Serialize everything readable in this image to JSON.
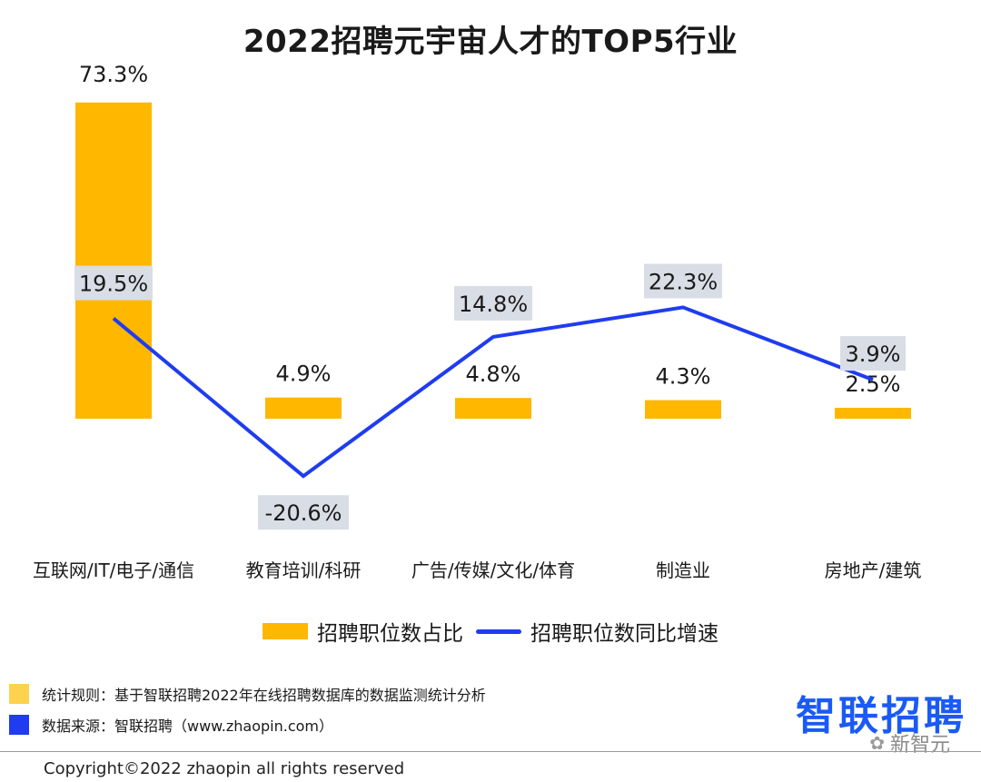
{
  "colors": {
    "bar": "#ffb700",
    "line": "#1f3cf0",
    "label_bg": "#d9dde6",
    "brand": "#1a5af5",
    "rule_swatch": "#ffd24d",
    "source_swatch": "#1f3cf0"
  },
  "chart_data": {
    "type": "bar",
    "title": "2022招聘元宇宙人才的TOP5行业",
    "categories": [
      "互联网/IT/电子/通信",
      "教育培训/科研",
      "广告/传媒/文化/体育",
      "制造业",
      "房地产/建筑"
    ],
    "series": [
      {
        "name": "招聘职位数占比",
        "kind": "bar",
        "values": [
          73.3,
          4.9,
          4.8,
          4.3,
          2.5
        ],
        "labels": [
          "73.3%",
          "4.9%",
          "4.8%",
          "4.3%",
          "2.5%"
        ]
      },
      {
        "name": "招聘职位数同比增速",
        "kind": "line",
        "values": [
          19.5,
          -20.6,
          14.8,
          22.3,
          3.9
        ],
        "labels": [
          "19.5%",
          "-20.6%",
          "14.8%",
          "22.3%",
          "3.9%"
        ]
      }
    ],
    "xlabel": "",
    "ylabel": "",
    "legend_position": "bottom"
  },
  "legend": {
    "bar_label": "招聘职位数占比",
    "line_label": "招聘职位数同比增速"
  },
  "notes": {
    "rule": "统计规则：基于智联招聘2022年在线招聘数据库的数据监测统计分析",
    "source": "数据来源：智联招聘（www.zhaopin.com）"
  },
  "brand": "智联招聘",
  "watermark": "新智元",
  "copyright": "Copyright©2022 zhaopin all rights reserved"
}
